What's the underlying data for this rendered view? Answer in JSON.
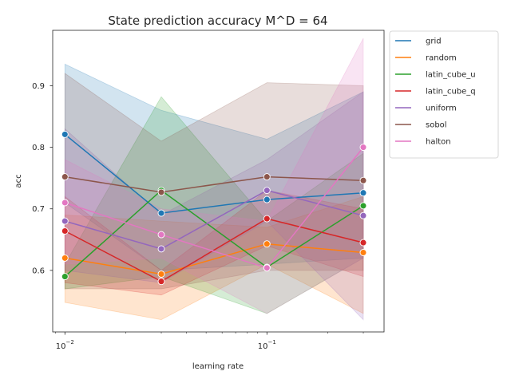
{
  "chart_data": {
    "type": "line",
    "title": "State prediction accuracy M^D = 64",
    "xlabel": "learning rate",
    "ylabel": "acc",
    "x": [
      0.01,
      0.03,
      0.1,
      0.3
    ],
    "x_scale": "log",
    "xlim": [
      0.0087,
      0.38
    ],
    "ylim": [
      0.5,
      0.99
    ],
    "x_ticks": [
      {
        "value": 0.01,
        "base": "10",
        "exp": "−2"
      },
      {
        "value": 0.1,
        "base": "10",
        "exp": "−1"
      }
    ],
    "y_ticks": [
      {
        "value": 0.6,
        "label": "0.6"
      },
      {
        "value": 0.7,
        "label": "0.7"
      },
      {
        "value": 0.8,
        "label": "0.8"
      },
      {
        "value": 0.9,
        "label": "0.9"
      }
    ],
    "grid": false,
    "legend_position": "outside-right",
    "series": [
      {
        "name": "grid",
        "color": "#1f77b4",
        "values": [
          0.821,
          0.693,
          0.715,
          0.726
        ],
        "lower": [
          0.71,
          0.6,
          0.61,
          0.62
        ],
        "upper": [
          0.935,
          0.86,
          0.813,
          0.89
        ]
      },
      {
        "name": "random",
        "color": "#ff7f0e",
        "values": [
          0.62,
          0.594,
          0.643,
          0.629
        ],
        "lower": [
          0.548,
          0.52,
          0.61,
          0.53
        ],
        "upper": [
          0.69,
          0.68,
          0.67,
          0.72
        ]
      },
      {
        "name": "latin_cube_u",
        "color": "#2ca02c",
        "values": [
          0.59,
          0.73,
          0.605,
          0.705
        ],
        "lower": [
          0.57,
          0.59,
          0.53,
          0.62
        ],
        "upper": [
          0.61,
          0.882,
          0.68,
          0.79
        ]
      },
      {
        "name": "latin_cube_q",
        "color": "#d62728",
        "values": [
          0.664,
          0.582,
          0.684,
          0.645
        ],
        "lower": [
          0.58,
          0.56,
          0.64,
          0.59
        ],
        "upper": [
          0.72,
          0.6,
          0.73,
          0.7
        ]
      },
      {
        "name": "uniform",
        "color": "#9467bd",
        "values": [
          0.68,
          0.635,
          0.73,
          0.689
        ],
        "lower": [
          0.6,
          0.58,
          0.68,
          0.52
        ],
        "upper": [
          0.83,
          0.69,
          0.78,
          0.89
        ]
      },
      {
        "name": "sobol",
        "color": "#8c564b",
        "values": [
          0.752,
          0.727,
          0.752,
          0.746
        ],
        "lower": [
          0.57,
          0.57,
          0.6,
          0.6
        ],
        "upper": [
          0.92,
          0.81,
          0.905,
          0.9
        ]
      },
      {
        "name": "halton",
        "color": "#e377c2",
        "values": [
          0.71,
          0.658,
          0.604,
          0.8
        ],
        "lower": [
          0.61,
          0.62,
          0.53,
          0.62
        ],
        "upper": [
          0.78,
          0.7,
          0.68,
          0.977
        ]
      }
    ]
  }
}
